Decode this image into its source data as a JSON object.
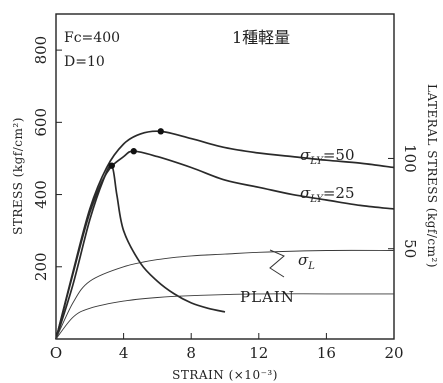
{
  "chart_data": {
    "type": "line",
    "x_range": [
      0,
      20
    ],
    "y_range": [
      0,
      900
    ],
    "y2_range": [
      0,
      180
    ],
    "x_ticks": [
      "O",
      "4",
      "8",
      "12",
      "16",
      "20"
    ],
    "x_tick_values": [
      0,
      4,
      8,
      12,
      16,
      20
    ],
    "y_ticks": [
      "200",
      "400",
      "600",
      "800"
    ],
    "y_tick_values": [
      200,
      400,
      600,
      800
    ],
    "y2_ticks": [
      "50",
      "100"
    ],
    "y2_tick_values": [
      50,
      100
    ],
    "xlabel": "STRAIN (×10⁻³)",
    "ylabel": "STRESS (kgf/cm²)",
    "y2label": "LATERAL STRESS (kgf/cm²)",
    "annotations": {
      "fc": "Fc=400",
      "d": "D=10",
      "title_jp": "1種軽量",
      "plain": "PLAIN"
    },
    "series": [
      {
        "label_sym": "σ",
        "label_sub": "LY",
        "label_val": "=50",
        "axis": "left",
        "peak": [
          6.2,
          575
        ],
        "points": [
          [
            0,
            0
          ],
          [
            1,
            185
          ],
          [
            2,
            360
          ],
          [
            3,
            475
          ],
          [
            4,
            540
          ],
          [
            5,
            568
          ],
          [
            6.2,
            575
          ],
          [
            8,
            555
          ],
          [
            10,
            530
          ],
          [
            12,
            515
          ],
          [
            14,
            505
          ],
          [
            16,
            495
          ],
          [
            18,
            487
          ],
          [
            20,
            475
          ]
        ]
      },
      {
        "label_sym": "σ",
        "label_sub": "LY",
        "label_val": "=25",
        "axis": "left",
        "peak": [
          4.6,
          520
        ],
        "points": [
          [
            0,
            0
          ],
          [
            1,
            180
          ],
          [
            2,
            350
          ],
          [
            3,
            460
          ],
          [
            4,
            505
          ],
          [
            4.6,
            520
          ],
          [
            6,
            505
          ],
          [
            8,
            475
          ],
          [
            10,
            440
          ],
          [
            12,
            420
          ],
          [
            14,
            400
          ],
          [
            16,
            385
          ],
          [
            18,
            370
          ],
          [
            20,
            360
          ]
        ]
      },
      {
        "label_val": "PLAIN",
        "axis": "left",
        "peak": [
          3.3,
          480
        ],
        "points": [
          [
            0,
            0
          ],
          [
            1,
            150
          ],
          [
            2,
            330
          ],
          [
            2.8,
            440
          ],
          [
            3.3,
            480
          ],
          [
            3.6,
            400
          ],
          [
            4,
            300
          ],
          [
            5,
            210
          ],
          [
            6,
            160
          ],
          [
            7,
            125
          ],
          [
            8,
            100
          ],
          [
            9,
            85
          ],
          [
            10,
            75
          ]
        ]
      },
      {
        "label_sym": "σ",
        "label_sub": "L",
        "axis": "right",
        "points": [
          [
            0,
            0
          ],
          [
            1,
            20
          ],
          [
            2,
            32
          ],
          [
            4,
            40
          ],
          [
            6,
            44
          ],
          [
            8,
            46
          ],
          [
            10,
            47
          ],
          [
            12,
            48
          ],
          [
            16,
            49
          ],
          [
            20,
            49
          ]
        ]
      },
      {
        "axis": "right",
        "points": [
          [
            0,
            0
          ],
          [
            1,
            12
          ],
          [
            2,
            17
          ],
          [
            4,
            21
          ],
          [
            6,
            23
          ],
          [
            8,
            24
          ],
          [
            12,
            25
          ],
          [
            16,
            25
          ],
          [
            20,
            25
          ]
        ]
      }
    ]
  }
}
